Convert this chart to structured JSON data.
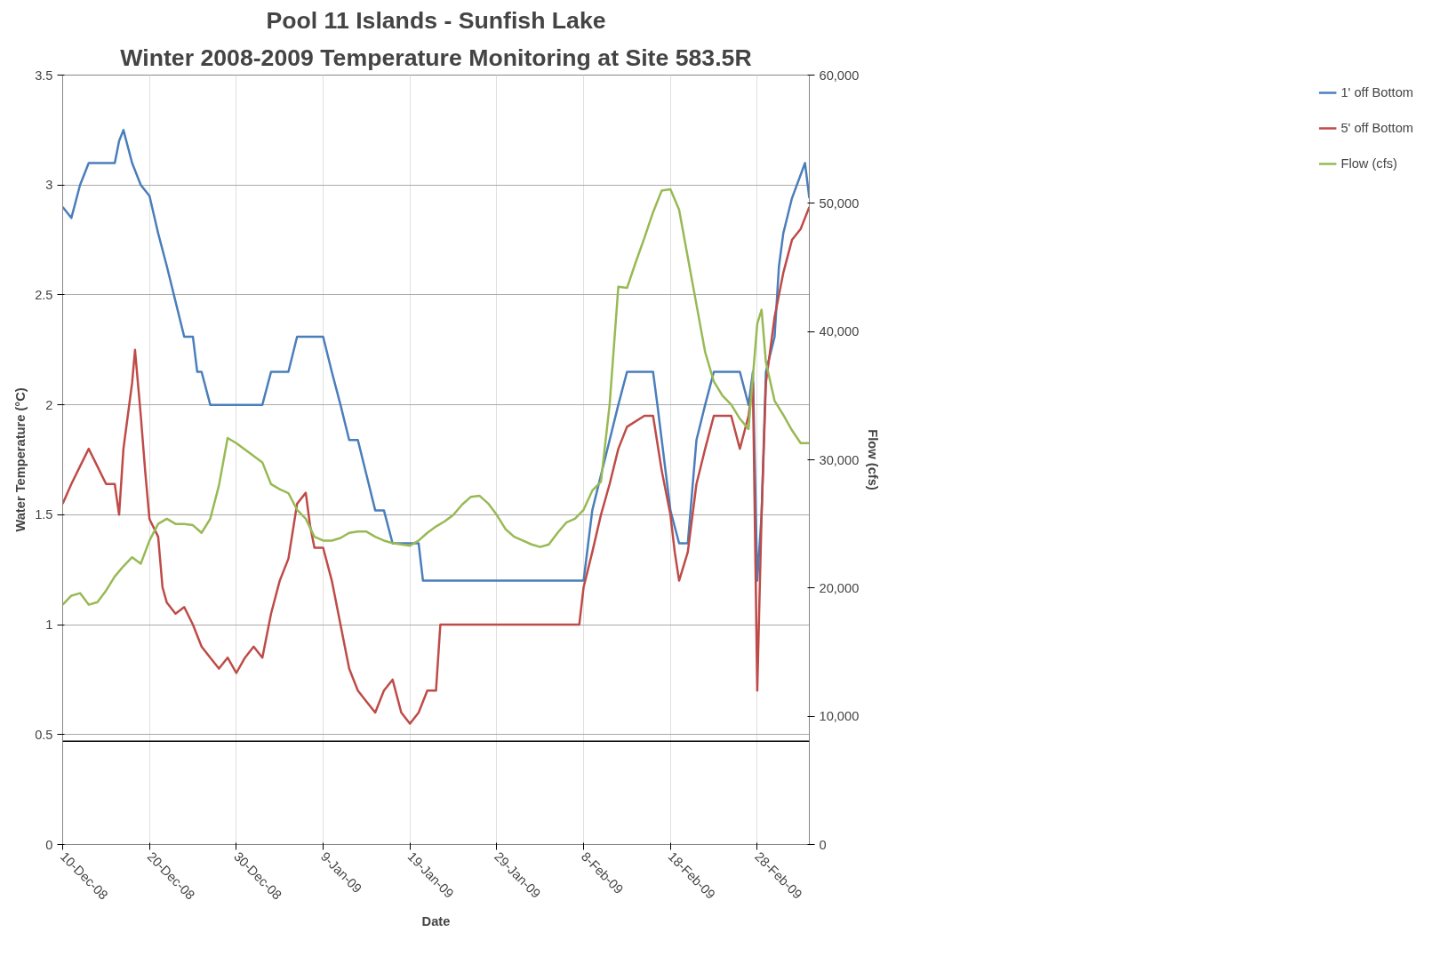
{
  "chart_data": {
    "type": "line",
    "title": "Pool 11 Islands - Sunfish Lake",
    "subtitle": "Winter 2008-2009 Temperature Monitoring at Site 583.5R",
    "xlabel": "Date",
    "ylabel": "Water Temperature (°C)",
    "y2label": "Flow (cfs)",
    "xlim": [
      "2008-12-10",
      "2009-03-06"
    ],
    "xticks": [
      {
        "value": "2008-12-10",
        "label": "10-Dec-08"
      },
      {
        "value": "2008-12-20",
        "label": "20-Dec-08"
      },
      {
        "value": "2008-12-30",
        "label": "30-Dec-08"
      },
      {
        "value": "2009-01-09",
        "label": "9-Jan-09"
      },
      {
        "value": "2009-01-19",
        "label": "19-Jan-09"
      },
      {
        "value": "2009-01-29",
        "label": "29-Jan-09"
      },
      {
        "value": "2009-02-08",
        "label": "8-Feb-09"
      },
      {
        "value": "2009-02-18",
        "label": "18-Feb-09"
      },
      {
        "value": "2009-02-28",
        "label": "28-Feb-09"
      }
    ],
    "ylim": [
      0,
      3.5
    ],
    "yticks": [
      0,
      0.5,
      1,
      1.5,
      2,
      2.5,
      3,
      3.5
    ],
    "y2lim": [
      0,
      60000
    ],
    "y2ticks": [
      0,
      {
        "value": 10000,
        "label": "10,000"
      },
      {
        "value": 20000,
        "label": "20,000"
      },
      {
        "value": 30000,
        "label": "30,000"
      },
      {
        "value": 40000,
        "label": "40,000"
      },
      {
        "value": 50000,
        "label": "50,000"
      },
      {
        "value": 60000,
        "label": "60,000"
      }
    ],
    "grid": true,
    "legend": "right",
    "ref_lines": [
      {
        "axis": "y",
        "value": 0.47,
        "color": "#000000"
      }
    ],
    "series": [
      {
        "name": "1' off Bottom",
        "color": "#4a7ebb",
        "x": [
          "2008-12-10",
          "2008-12-11",
          "2008-12-12",
          "2008-12-13",
          "2008-12-15",
          "2008-12-16",
          "2008-12-16T12:00",
          "2008-12-17",
          "2008-12-18",
          "2008-12-19",
          "2008-12-20",
          "2008-12-21",
          "2008-12-22",
          "2008-12-23",
          "2008-12-24",
          "2008-12-25",
          "2008-12-25T12:00",
          "2008-12-26",
          "2008-12-27",
          "2009-01-02",
          "2009-01-03",
          "2009-01-05",
          "2009-01-06",
          "2009-01-09",
          "2009-01-10",
          "2009-01-11",
          "2009-01-12",
          "2009-01-13",
          "2009-01-14",
          "2009-01-15",
          "2009-01-16",
          "2009-01-17",
          "2009-01-20",
          "2009-01-20T12:00",
          "2009-02-08",
          "2009-02-08T12:00",
          "2009-02-09",
          "2009-02-10",
          "2009-02-11",
          "2009-02-12",
          "2009-02-13",
          "2009-02-16",
          "2009-02-16T12:00",
          "2009-02-17",
          "2009-02-18",
          "2009-02-19",
          "2009-02-20",
          "2009-02-21",
          "2009-02-22",
          "2009-02-23",
          "2009-02-26",
          "2009-02-27",
          "2009-02-27T12:00",
          "2009-02-28",
          "2009-02-28T12:00",
          "2009-03-01",
          "2009-03-02",
          "2009-03-02T12:00",
          "2009-03-03",
          "2009-03-04",
          "2009-03-05T12:00",
          "2009-03-06"
        ],
        "values": [
          2.9,
          2.85,
          3.0,
          3.1,
          3.1,
          3.1,
          3.2,
          3.25,
          3.1,
          3.0,
          2.95,
          2.78,
          2.63,
          2.47,
          2.31,
          2.31,
          2.15,
          2.15,
          2.0,
          2.0,
          2.15,
          2.15,
          2.31,
          2.31,
          2.15,
          2.0,
          1.84,
          1.84,
          1.68,
          1.52,
          1.52,
          1.37,
          1.37,
          1.2,
          1.2,
          1.36,
          1.52,
          1.68,
          1.84,
          2.0,
          2.15,
          2.15,
          2.0,
          1.84,
          1.52,
          1.37,
          1.37,
          1.84,
          2.0,
          2.15,
          2.15,
          2.0,
          2.15,
          1.2,
          1.5,
          2.15,
          2.31,
          2.63,
          2.78,
          2.94,
          3.1,
          2.94
        ]
      },
      {
        "name": "5' off Bottom",
        "color": "#be4b48",
        "x": [
          "2008-12-10",
          "2008-12-11",
          "2008-12-12",
          "2008-12-13",
          "2008-12-14",
          "2008-12-15",
          "2008-12-16",
          "2008-12-16T12:00",
          "2008-12-17",
          "2008-12-17T12:00",
          "2008-12-18",
          "2008-12-18T08:00",
          "2008-12-19",
          "2008-12-19T12:00",
          "2008-12-20",
          "2008-12-21",
          "2008-12-21T12:00",
          "2008-12-22",
          "2008-12-23",
          "2008-12-24",
          "2008-12-25",
          "2008-12-26",
          "2008-12-27",
          "2008-12-28",
          "2008-12-29",
          "2008-12-30",
          "2008-12-31",
          "2009-01-01",
          "2009-01-02",
          "2009-01-03",
          "2009-01-04",
          "2009-01-05",
          "2009-01-06",
          "2009-01-07",
          "2009-01-07T12:00",
          "2009-01-08",
          "2009-01-09",
          "2009-01-10",
          "2009-01-11",
          "2009-01-12",
          "2009-01-13",
          "2009-01-14",
          "2009-01-15",
          "2009-01-16",
          "2009-01-17",
          "2009-01-18",
          "2009-01-19",
          "2009-01-20",
          "2009-01-21",
          "2009-01-22",
          "2009-01-22T12:00",
          "2009-02-07T12:00",
          "2009-02-08",
          "2009-02-09",
          "2009-02-10",
          "2009-02-11",
          "2009-02-12",
          "2009-02-13",
          "2009-02-15",
          "2009-02-16",
          "2009-02-17",
          "2009-02-18",
          "2009-02-18T12:00",
          "2009-02-19",
          "2009-02-20",
          "2009-02-21",
          "2009-02-22",
          "2009-02-23",
          "2009-02-24",
          "2009-02-25",
          "2009-02-26",
          "2009-02-27",
          "2009-02-27T12:00",
          "2009-02-28",
          "2009-02-28T12:00",
          "2009-03-01",
          "2009-03-02",
          "2009-03-03",
          "2009-03-04",
          "2009-03-05",
          "2009-03-06"
        ],
        "values": [
          1.55,
          1.64,
          1.72,
          1.8,
          1.72,
          1.64,
          1.64,
          1.5,
          1.8,
          1.95,
          2.1,
          2.25,
          1.95,
          1.7,
          1.48,
          1.4,
          1.17,
          1.1,
          1.05,
          1.08,
          1.0,
          0.9,
          0.85,
          0.8,
          0.85,
          0.78,
          0.85,
          0.9,
          0.85,
          1.05,
          1.2,
          1.3,
          1.55,
          1.6,
          1.45,
          1.35,
          1.35,
          1.2,
          1.0,
          0.8,
          0.7,
          0.65,
          0.6,
          0.7,
          0.75,
          0.6,
          0.55,
          0.6,
          0.7,
          0.7,
          1.0,
          1.0,
          1.17,
          1.33,
          1.5,
          1.64,
          1.8,
          1.9,
          1.95,
          1.95,
          1.7,
          1.5,
          1.33,
          1.2,
          1.33,
          1.64,
          1.8,
          1.95,
          1.95,
          1.95,
          1.8,
          1.95,
          2.1,
          0.7,
          1.5,
          2.1,
          2.4,
          2.6,
          2.75,
          2.8,
          2.9
        ]
      },
      {
        "name": "Flow (cfs)",
        "color": "#98b954",
        "axis": "y2",
        "x": [
          "2008-12-10",
          "2008-12-11",
          "2008-12-12",
          "2008-12-13",
          "2008-12-14",
          "2008-12-15",
          "2008-12-16",
          "2008-12-17",
          "2008-12-18",
          "2008-12-19",
          "2008-12-20",
          "2008-12-21",
          "2008-12-22",
          "2008-12-23",
          "2008-12-24",
          "2008-12-25",
          "2008-12-26",
          "2008-12-27",
          "2008-12-28",
          "2008-12-29",
          "2008-12-30",
          "2008-12-31",
          "2009-01-01",
          "2009-01-02",
          "2009-01-03",
          "2009-01-04",
          "2009-01-05",
          "2009-01-06",
          "2009-01-07",
          "2009-01-08",
          "2009-01-09",
          "2009-01-10",
          "2009-01-11",
          "2009-01-12",
          "2009-01-13",
          "2009-01-14",
          "2009-01-15",
          "2009-01-16",
          "2009-01-17",
          "2009-01-18",
          "2009-01-19",
          "2009-01-20",
          "2009-01-21",
          "2009-01-22",
          "2009-01-23",
          "2009-01-24",
          "2009-01-25",
          "2009-01-26",
          "2009-01-27",
          "2009-01-28",
          "2009-01-29",
          "2009-01-30",
          "2009-01-31",
          "2009-02-01",
          "2009-02-02",
          "2009-02-03",
          "2009-02-04",
          "2009-02-05",
          "2009-02-06",
          "2009-02-07",
          "2009-02-08",
          "2009-02-09",
          "2009-02-10",
          "2009-02-11",
          "2009-02-12",
          "2009-02-13",
          "2009-02-14",
          "2009-02-15",
          "2009-02-16",
          "2009-02-17",
          "2009-02-18",
          "2009-02-19",
          "2009-02-20",
          "2009-02-21",
          "2009-02-22",
          "2009-02-23",
          "2009-02-24",
          "2009-02-25",
          "2009-02-26",
          "2009-02-27",
          "2009-02-28",
          "2009-02-28T12:00",
          "2009-03-01",
          "2009-03-02",
          "2009-03-03",
          "2009-03-04",
          "2009-03-05",
          "2009-03-06"
        ],
        "values": [
          18700,
          19400,
          19600,
          18700,
          18900,
          19800,
          20900,
          21700,
          22400,
          21900,
          23700,
          25000,
          25400,
          25000,
          25000,
          24900,
          24300,
          25400,
          28000,
          31700,
          31300,
          30800,
          30300,
          29800,
          28100,
          27700,
          27400,
          26100,
          25400,
          24000,
          23700,
          23700,
          23900,
          24300,
          24400,
          24400,
          24000,
          23700,
          23500,
          23400,
          23300,
          23700,
          24300,
          24800,
          25200,
          25700,
          26500,
          27100,
          27200,
          26600,
          25700,
          24600,
          24000,
          23700,
          23400,
          23200,
          23400,
          24300,
          25100,
          25400,
          26100,
          27600,
          28300,
          34300,
          43500,
          43400,
          45400,
          47300,
          49300,
          51000,
          51100,
          49500,
          45800,
          42100,
          38400,
          36100,
          35000,
          34300,
          33200,
          32400,
          40600,
          41700,
          37600,
          34600,
          33500,
          32300,
          31300,
          31300
        ]
      }
    ]
  }
}
